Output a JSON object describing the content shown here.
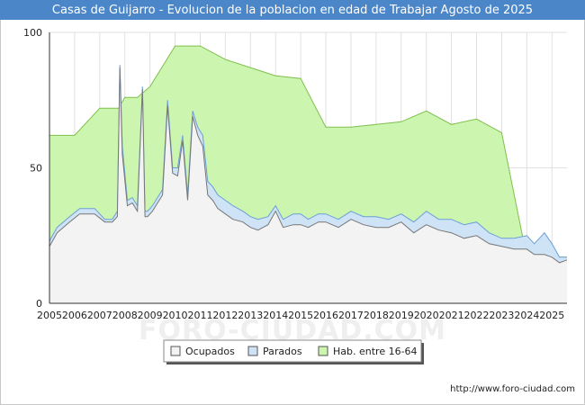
{
  "chart_data": {
    "type": "area",
    "title": "Casas de Guijarro - Evolucion de la poblacion en edad de Trabajar Agosto de 2025",
    "xlabel": "",
    "ylabel": "",
    "xlim": [
      2005,
      2025.6
    ],
    "ylim": [
      0,
      100
    ],
    "y_ticks": [
      0,
      50,
      100
    ],
    "x_ticks": [
      "2005",
      "2006",
      "2007",
      "2008",
      "2009",
      "2010",
      "2011",
      "2012",
      "2013",
      "2014",
      "2015",
      "2016",
      "2017",
      "2018",
      "2019",
      "2020",
      "2021",
      "2022",
      "2023",
      "2024",
      "2025"
    ],
    "grid": true,
    "legend_position": "bottom",
    "series": [
      {
        "name": "Hab. entre 16-64",
        "fill": "#ccf5b0",
        "stroke": "#7fbf4a",
        "x": [
          2005,
          2006,
          2007,
          2007.75,
          2008,
          2008.5,
          2009,
          2010,
          2011,
          2012,
          2013,
          2014,
          2015,
          2016,
          2017,
          2018,
          2019,
          2020,
          2021,
          2022,
          2023,
          2024,
          2025.6
        ],
        "values": [
          62,
          62,
          72,
          72,
          76,
          76,
          80,
          95,
          95,
          90,
          87,
          84,
          83,
          65,
          65,
          66,
          67,
          71,
          66,
          68,
          63,
          17,
          17
        ]
      },
      {
        "name": "Parados",
        "fill": "#cfe3f7",
        "stroke": "#6b9fd6",
        "x": [
          2005,
          2005.3,
          2005.8,
          2006.2,
          2006.8,
          2007.2,
          2007.5,
          2007.7,
          2007.8,
          2007.9,
          2008.1,
          2008.3,
          2008.5,
          2008.7,
          2008.8,
          2008.9,
          2009.1,
          2009.5,
          2009.7,
          2009.9,
          2010.1,
          2010.3,
          2010.5,
          2010.7,
          2010.9,
          2011.1,
          2011.3,
          2011.5,
          2011.7,
          2012,
          2012.3,
          2012.7,
          2013,
          2013.3,
          2013.7,
          2014,
          2014.3,
          2014.7,
          2015,
          2015.3,
          2015.7,
          2016,
          2016.5,
          2017,
          2017.5,
          2018,
          2018.5,
          2019,
          2019.5,
          2020,
          2020.5,
          2021,
          2021.5,
          2022,
          2022.5,
          2023,
          2023.5,
          2024,
          2024.3,
          2024.7,
          2025,
          2025.3,
          2025.6
        ],
        "values": [
          23,
          28,
          32,
          35,
          35,
          31,
          31,
          34,
          88,
          58,
          38,
          39,
          36,
          80,
          34,
          34,
          36,
          42,
          75,
          50,
          50,
          62,
          40,
          71,
          65,
          62,
          45,
          43,
          40,
          38,
          36,
          34,
          32,
          31,
          32,
          36,
          31,
          33,
          33,
          31,
          33,
          33,
          31,
          34,
          32,
          32,
          31,
          33,
          30,
          34,
          31,
          31,
          29,
          30,
          26,
          24,
          24,
          25,
          22,
          26,
          22,
          17,
          17
        ]
      },
      {
        "name": "Ocupados",
        "fill": "#f3f3f3",
        "stroke": "#777777",
        "x": [
          2005,
          2005.3,
          2005.8,
          2006.2,
          2006.8,
          2007.2,
          2007.5,
          2007.7,
          2007.8,
          2007.9,
          2008.1,
          2008.3,
          2008.5,
          2008.7,
          2008.8,
          2008.9,
          2009.1,
          2009.5,
          2009.7,
          2009.9,
          2010.1,
          2010.3,
          2010.5,
          2010.7,
          2010.9,
          2011.1,
          2011.3,
          2011.5,
          2011.7,
          2012,
          2012.3,
          2012.7,
          2013,
          2013.3,
          2013.7,
          2014,
          2014.3,
          2014.7,
          2015,
          2015.3,
          2015.7,
          2016,
          2016.5,
          2017,
          2017.5,
          2018,
          2018.5,
          2019,
          2019.5,
          2020,
          2020.5,
          2021,
          2021.5,
          2022,
          2022.5,
          2023,
          2023.5,
          2024,
          2024.3,
          2024.7,
          2025,
          2025.3,
          2025.6
        ],
        "values": [
          21,
          26,
          30,
          33,
          33,
          30,
          30,
          32,
          87,
          55,
          36,
          37,
          34,
          79,
          32,
          32,
          34,
          40,
          73,
          48,
          47,
          60,
          38,
          69,
          62,
          58,
          40,
          38,
          35,
          33,
          31,
          30,
          28,
          27,
          29,
          34,
          28,
          29,
          29,
          28,
          30,
          30,
          28,
          31,
          29,
          28,
          28,
          30,
          26,
          29,
          27,
          26,
          24,
          25,
          22,
          21,
          20,
          20,
          18,
          18,
          17,
          15,
          16
        ]
      }
    ]
  },
  "footer": {
    "url": "http://www.foro-ciudad.com"
  },
  "watermark": "FORO-CIUDAD.COM"
}
